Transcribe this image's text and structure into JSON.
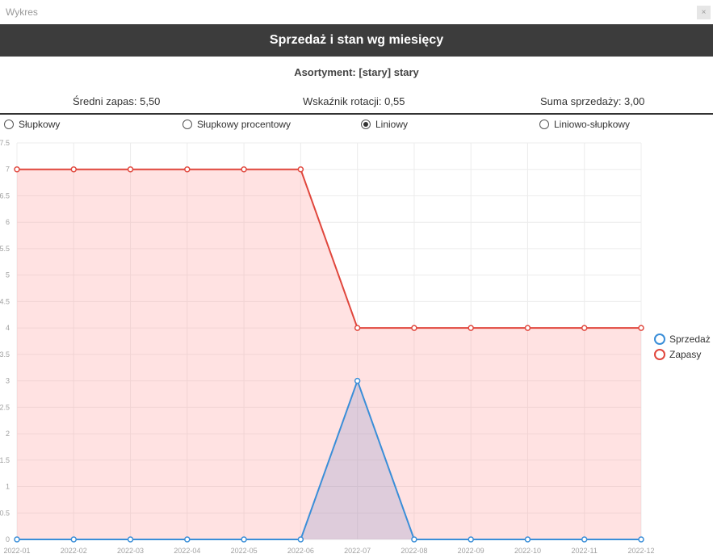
{
  "window": {
    "title": "Wykres",
    "close_glyph": "×"
  },
  "header": {
    "title": "Sprzedaż i stan wg miesięcy"
  },
  "subtitle": "Asortyment: [stary] stary",
  "stats": {
    "avg_stock": "Średni zapas: 5,50",
    "rotation": "Wskaźnik rotacji: 0,55",
    "sales_sum": "Suma sprzedaży: 3,00"
  },
  "chart_types": [
    {
      "label": "Słupkowy",
      "selected": false
    },
    {
      "label": "Słupkowy procentowy",
      "selected": false
    },
    {
      "label": "Liniowy",
      "selected": true
    },
    {
      "label": "Liniowo-słupkowy",
      "selected": false
    }
  ],
  "chart_data": {
    "type": "line",
    "categories": [
      "2022-01",
      "2022-02",
      "2022-03",
      "2022-04",
      "2022-05",
      "2022-06",
      "2022-07",
      "2022-08",
      "2022-09",
      "2022-10",
      "2022-11",
      "2022-12"
    ],
    "series": [
      {
        "name": "Sprzedaż",
        "color": "#3a8ed8",
        "fill": "rgba(125,140,200,0.25)",
        "values": [
          0,
          0,
          0,
          0,
          0,
          0,
          3,
          0,
          0,
          0,
          0,
          0
        ]
      },
      {
        "name": "Zapasy",
        "color": "#e0463c",
        "fill": "rgba(255,150,150,0.28)",
        "values": [
          7,
          7,
          7,
          7,
          7,
          7,
          4,
          4,
          4,
          4,
          4,
          4
        ]
      }
    ],
    "ylim": [
      0,
      7.5
    ],
    "yticks": [
      "0",
      "0.5",
      "1",
      "1.5",
      "2",
      "2.5",
      "3",
      "3.5",
      "4",
      "4.5",
      "5",
      "5.5",
      "6",
      "6.5",
      "7",
      "7.5"
    ],
    "grid": true,
    "legend": "right"
  }
}
